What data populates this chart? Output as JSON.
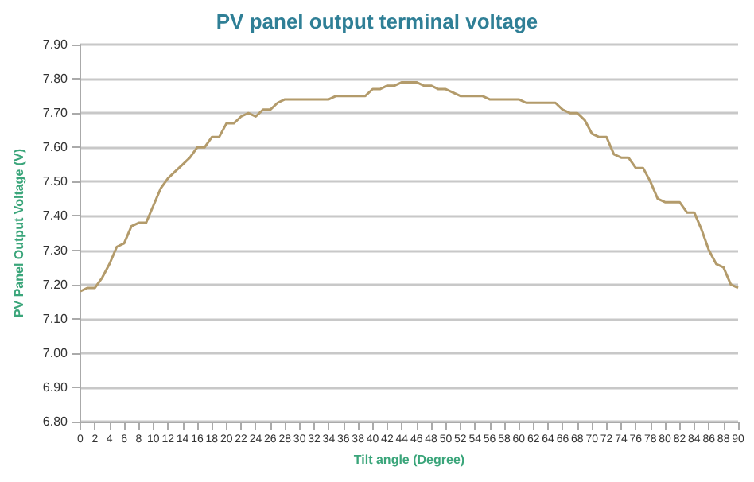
{
  "chart_data": {
    "type": "line",
    "title": "PV panel output terminal voltage",
    "xlabel": "Tilt angle (Degree)",
    "ylabel": "PV Panel Output Voltage (V)",
    "x": [
      0,
      1,
      2,
      3,
      4,
      5,
      6,
      7,
      8,
      9,
      10,
      11,
      12,
      13,
      14,
      15,
      16,
      17,
      18,
      19,
      20,
      21,
      22,
      23,
      24,
      25,
      26,
      27,
      28,
      29,
      30,
      31,
      32,
      33,
      34,
      35,
      36,
      37,
      38,
      39,
      40,
      41,
      42,
      43,
      44,
      45,
      46,
      47,
      48,
      49,
      50,
      51,
      52,
      53,
      54,
      55,
      56,
      57,
      58,
      59,
      60,
      61,
      62,
      63,
      64,
      65,
      66,
      67,
      68,
      69,
      70,
      71,
      72,
      73,
      74,
      75,
      76,
      77,
      78,
      79,
      80,
      81,
      82,
      83,
      84,
      85,
      86,
      87,
      88,
      89,
      90
    ],
    "series": [
      {
        "color": "#b39b6b",
        "values": [
          7.18,
          7.19,
          7.19,
          7.22,
          7.26,
          7.31,
          7.32,
          7.37,
          7.38,
          7.38,
          7.43,
          7.48,
          7.51,
          7.53,
          7.55,
          7.57,
          7.6,
          7.6,
          7.63,
          7.63,
          7.67,
          7.67,
          7.69,
          7.7,
          7.69,
          7.71,
          7.71,
          7.73,
          7.74,
          7.74,
          7.74,
          7.74,
          7.74,
          7.74,
          7.74,
          7.75,
          7.75,
          7.75,
          7.75,
          7.75,
          7.77,
          7.77,
          7.78,
          7.78,
          7.79,
          7.79,
          7.79,
          7.78,
          7.78,
          7.77,
          7.77,
          7.76,
          7.75,
          7.75,
          7.75,
          7.75,
          7.74,
          7.74,
          7.74,
          7.74,
          7.74,
          7.73,
          7.73,
          7.73,
          7.73,
          7.73,
          7.71,
          7.7,
          7.7,
          7.68,
          7.64,
          7.63,
          7.63,
          7.58,
          7.57,
          7.57,
          7.54,
          7.54,
          7.5,
          7.45,
          7.44,
          7.44,
          7.44,
          7.41,
          7.41,
          7.36,
          7.3,
          7.26,
          7.25,
          7.2,
          7.19
        ]
      }
    ],
    "xlim": [
      0,
      90
    ],
    "xticks": [
      0,
      2,
      4,
      6,
      8,
      10,
      12,
      14,
      16,
      18,
      20,
      22,
      24,
      26,
      28,
      30,
      32,
      34,
      36,
      38,
      40,
      42,
      44,
      46,
      48,
      50,
      52,
      54,
      56,
      58,
      60,
      62,
      64,
      66,
      68,
      70,
      72,
      74,
      76,
      78,
      80,
      82,
      84,
      86,
      88,
      90
    ],
    "ylim": [
      6.8,
      7.9
    ],
    "yticks": [
      {
        "value": 6.8,
        "label": "6.80"
      },
      {
        "value": 6.9,
        "label": "6.90"
      },
      {
        "value": 7.0,
        "label": "7.00"
      },
      {
        "value": 7.1,
        "label": "7.10"
      },
      {
        "value": 7.2,
        "label": "7.20"
      },
      {
        "value": 7.3,
        "label": "7.30"
      },
      {
        "value": 7.4,
        "label": "7.40"
      },
      {
        "value": 7.5,
        "label": "7.50"
      },
      {
        "value": 7.6,
        "label": "7.60"
      },
      {
        "value": 7.7,
        "label": "7.70"
      },
      {
        "value": 7.8,
        "label": "7.80"
      },
      {
        "value": 7.9,
        "label": "7.90"
      }
    ],
    "grid": "y",
    "marker": "none",
    "line_style": "solid"
  }
}
